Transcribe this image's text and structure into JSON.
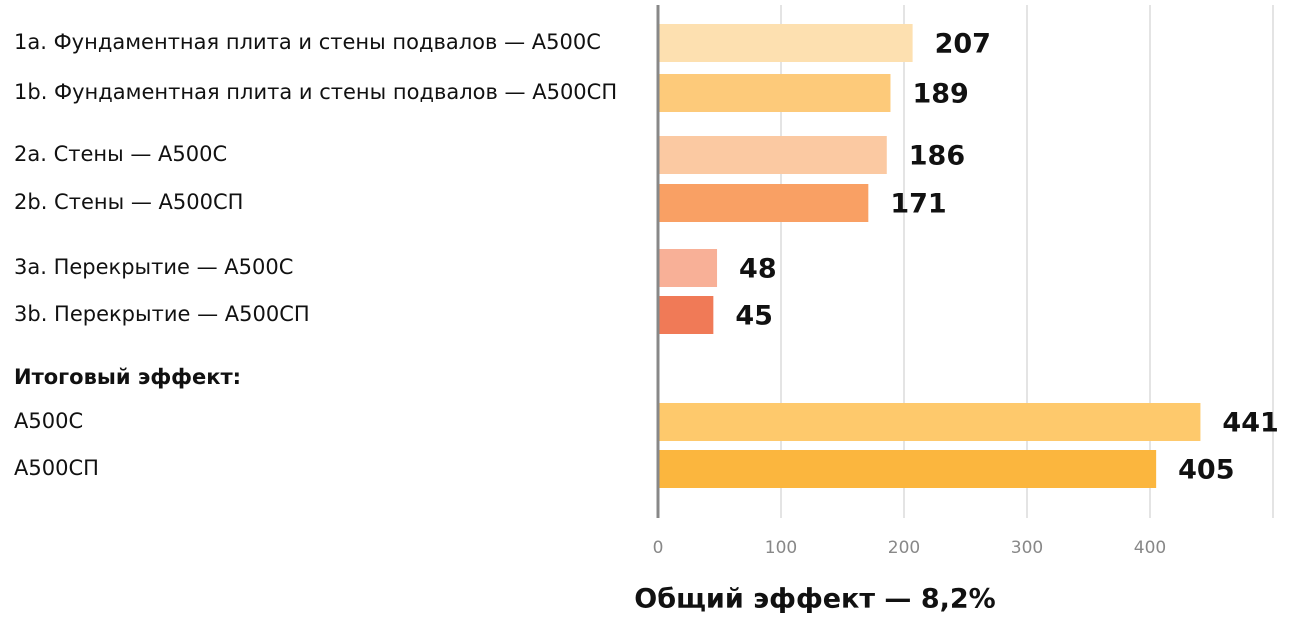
{
  "chart_data": {
    "type": "barh",
    "categories": [
      "1a. Фундаментная плита и стены подвалов — А500С",
      "1b. Фундаментная плита и стены подвалов — А500СП",
      "2a. Стены — А500С",
      "2b. Стены — А500СП",
      "3a. Перекрытие — А500С",
      "3b. Перекрытие — А500СП",
      "Итоговый эффект:",
      "А500С",
      "А500СП"
    ],
    "values": [
      207,
      189,
      186,
      171,
      48,
      45,
      null,
      441,
      405
    ],
    "colors": [
      "#fde0b0",
      "#fdca7a",
      "#fbc9a2",
      "#f9a064",
      "#f8b097",
      "#f07a57",
      null,
      "#fec96c",
      "#fbb63e"
    ],
    "xlim": [
      0,
      500
    ],
    "xticks": [
      0,
      100,
      200,
      300,
      400
    ],
    "grid": true,
    "xlabel": "Общий эффект — 8,2%"
  }
}
